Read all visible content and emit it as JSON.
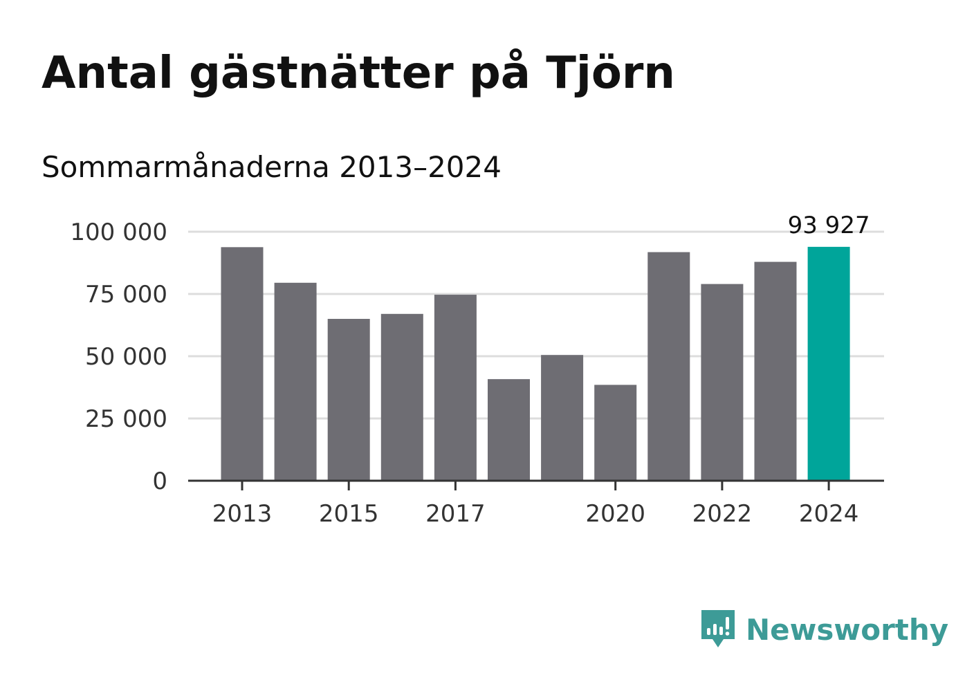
{
  "title": "Antal gästnätter på Tjörn",
  "subtitle": "Sommarmånaderna 2013–2024",
  "brand": {
    "name": "Newsworthy",
    "icon": "newsworthy-logo-icon",
    "color": "#3d9b97"
  },
  "colors": {
    "bar": "#6e6d73",
    "highlight": "#00a59a",
    "grid": "#dddddd",
    "axis": "#333333"
  },
  "chart_data": {
    "type": "bar",
    "title": "Antal gästnätter på Tjörn",
    "subtitle": "Sommarmånaderna 2013–2024",
    "xlabel": "",
    "ylabel": "",
    "categories": [
      "2013",
      "2014",
      "2015",
      "2016",
      "2017",
      "2018",
      "2019",
      "2020",
      "2021",
      "2022",
      "2023",
      "2024"
    ],
    "values": [
      93800,
      79500,
      65000,
      67000,
      74700,
      40800,
      50500,
      38500,
      91800,
      79000,
      87900,
      93927
    ],
    "highlight_index": 11,
    "data_labels": [
      {
        "index": 11,
        "text": "93 927"
      }
    ],
    "ylim": [
      0,
      100000
    ],
    "yticks": [
      {
        "value": 0,
        "label": "0"
      },
      {
        "value": 25000,
        "label": "25 000"
      },
      {
        "value": 50000,
        "label": "50 000"
      },
      {
        "value": 75000,
        "label": "75 000"
      },
      {
        "value": 100000,
        "label": "100 000"
      }
    ],
    "xticks": [
      "2013",
      "2015",
      "2017",
      "2020",
      "2022",
      "2024"
    ],
    "grid": true,
    "legend": "none"
  }
}
